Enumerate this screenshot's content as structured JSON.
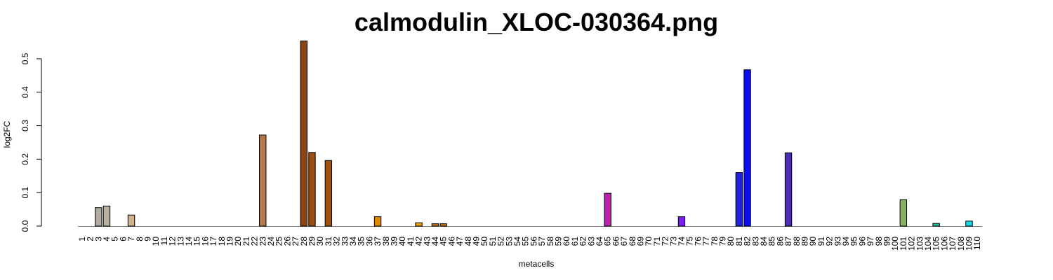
{
  "chart_data": {
    "type": "bar",
    "title": "calmodulin_XLOC-030364.png",
    "xlabel": "metacells",
    "ylabel": "log2FC",
    "ylim": [
      0,
      0.55
    ],
    "y_ticks": [
      "0.0",
      "0.1",
      "0.2",
      "0.3",
      "0.4",
      "0.5"
    ],
    "y_tick_values": [
      0,
      0.1,
      0.2,
      0.3,
      0.4,
      0.5
    ],
    "grid": false,
    "legend": "none",
    "categories": [
      "1",
      "2",
      "3",
      "4",
      "5",
      "6",
      "7",
      "8",
      "9",
      "10",
      "11",
      "12",
      "13",
      "14",
      "15",
      "16",
      "17",
      "18",
      "19",
      "20",
      "21",
      "22",
      "23",
      "24",
      "25",
      "26",
      "27",
      "28",
      "29",
      "30",
      "31",
      "32",
      "33",
      "34",
      "35",
      "36",
      "37",
      "38",
      "39",
      "40",
      "41",
      "42",
      "43",
      "44",
      "45",
      "46",
      "47",
      "48",
      "49",
      "50",
      "51",
      "52",
      "53",
      "54",
      "55",
      "56",
      "57",
      "58",
      "59",
      "60",
      "61",
      "62",
      "63",
      "64",
      "65",
      "66",
      "67",
      "68",
      "69",
      "70",
      "71",
      "72",
      "73",
      "74",
      "75",
      "76",
      "77",
      "78",
      "79",
      "80",
      "81",
      "82",
      "83",
      "84",
      "85",
      "86",
      "87",
      "88",
      "89",
      "90",
      "91",
      "92",
      "93",
      "94",
      "95",
      "96",
      "97",
      "98",
      "99",
      "100",
      "101",
      "102",
      "103",
      "104",
      "105",
      "106",
      "107",
      "108",
      "109",
      "110"
    ],
    "values": [
      0,
      0,
      0.055,
      0.06,
      0,
      0,
      0.033,
      0,
      0,
      0,
      0,
      0,
      0,
      0,
      0,
      0,
      0,
      0,
      0,
      0,
      0,
      0,
      0.272,
      0,
      0,
      0,
      0,
      0.553,
      0.22,
      0,
      0.196,
      0,
      0,
      0,
      0,
      0,
      0.028,
      0,
      0,
      0,
      0,
      0.01,
      0,
      0.007,
      0.007,
      0,
      0,
      0,
      0,
      0,
      0,
      0,
      0,
      0,
      0,
      0,
      0,
      0,
      0,
      0,
      0,
      0,
      0,
      0,
      0.098,
      0,
      0,
      0,
      0,
      0,
      0,
      0,
      0,
      0.028,
      0,
      0,
      0,
      0,
      0,
      0,
      0.16,
      0.467,
      0,
      0,
      0,
      0,
      0.219,
      0,
      0,
      0,
      0,
      0,
      0,
      0,
      0,
      0,
      0,
      0,
      0,
      0,
      0.079,
      0,
      0,
      0,
      0.008,
      0,
      0,
      0,
      0.015,
      0
    ],
    "colors": [
      "#a9a9a9",
      "#a9a9a9",
      "#b0aca4",
      "#b8b0a2",
      "#a9a9a9",
      "#a9a9a9",
      "#d2b48c",
      "#a9a9a9",
      "#a9a9a9",
      "#a9a9a9",
      "#a9a9a9",
      "#a9a9a9",
      "#a9a9a9",
      "#a9a9a9",
      "#a9a9a9",
      "#a9a9a9",
      "#a9a9a9",
      "#a9a9a9",
      "#a9a9a9",
      "#a9a9a9",
      "#a9a9a9",
      "#a9a9a9",
      "#b07a4c",
      "#a9a9a9",
      "#a9a9a9",
      "#a9a9a9",
      "#a9a9a9",
      "#8b4513",
      "#9a4e12",
      "#a9a9a9",
      "#a0520f",
      "#a9a9a9",
      "#a9a9a9",
      "#a9a9a9",
      "#a9a9a9",
      "#a9a9a9",
      "#e08a00",
      "#a9a9a9",
      "#a9a9a9",
      "#a9a9a9",
      "#a9a9a9",
      "#f0a000",
      "#a9a9a9",
      "#d07a20",
      "#d07a20",
      "#a9a9a9",
      "#a9a9a9",
      "#a9a9a9",
      "#a9a9a9",
      "#a9a9a9",
      "#a9a9a9",
      "#a9a9a9",
      "#a9a9a9",
      "#a9a9a9",
      "#a9a9a9",
      "#a9a9a9",
      "#a9a9a9",
      "#a9a9a9",
      "#a9a9a9",
      "#a9a9a9",
      "#a9a9a9",
      "#a9a9a9",
      "#a9a9a9",
      "#a9a9a9",
      "#c020b0",
      "#a9a9a9",
      "#a9a9a9",
      "#a9a9a9",
      "#a9a9a9",
      "#a9a9a9",
      "#a9a9a9",
      "#a9a9a9",
      "#a9a9a9",
      "#7a1ef0",
      "#a9a9a9",
      "#a9a9a9",
      "#a9a9a9",
      "#a9a9a9",
      "#a9a9a9",
      "#a9a9a9",
      "#2222dd",
      "#0a0af5",
      "#a9a9a9",
      "#a9a9a9",
      "#a9a9a9",
      "#a9a9a9",
      "#4a2db8",
      "#a9a9a9",
      "#a9a9a9",
      "#a9a9a9",
      "#a9a9a9",
      "#a9a9a9",
      "#a9a9a9",
      "#a9a9a9",
      "#a9a9a9",
      "#a9a9a9",
      "#a9a9a9",
      "#a9a9a9",
      "#a9a9a9",
      "#a9a9a9",
      "#88b060",
      "#a9a9a9",
      "#a9a9a9",
      "#a9a9a9",
      "#20c0a0",
      "#a9a9a9",
      "#a9a9a9",
      "#a9a9a9",
      "#18d8e8",
      "#a9a9a9"
    ]
  }
}
